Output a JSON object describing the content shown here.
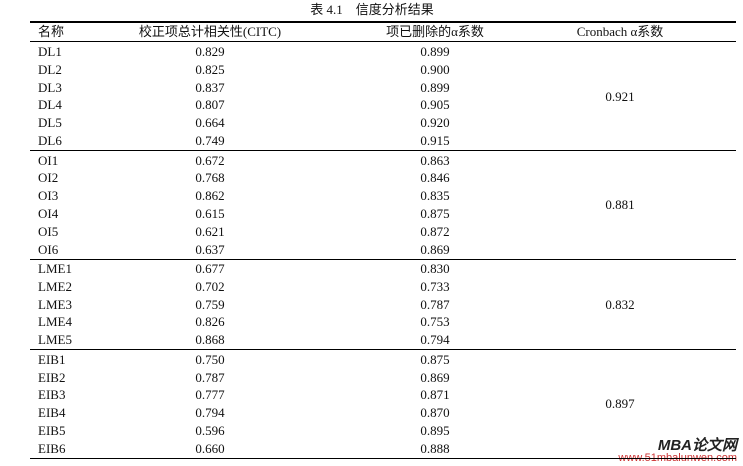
{
  "table": {
    "title": "表 4.1　信度分析结果",
    "headers": [
      "名称",
      "校正项总计相关性(CITC)",
      "项已删除的α系数",
      "Cronbach α系数"
    ],
    "groups": [
      {
        "rows": [
          [
            "DL1",
            "0.829",
            "0.899"
          ],
          [
            "DL2",
            "0.825",
            "0.900"
          ],
          [
            "DL3",
            "0.837",
            "0.899"
          ],
          [
            "DL4",
            "0.807",
            "0.905"
          ],
          [
            "DL5",
            "0.664",
            "0.920"
          ],
          [
            "DL6",
            "0.749",
            "0.915"
          ]
        ],
        "alpha": "0.921"
      },
      {
        "rows": [
          [
            "OI1",
            "0.672",
            "0.863"
          ],
          [
            "OI2",
            "0.768",
            "0.846"
          ],
          [
            "OI3",
            "0.862",
            "0.835"
          ],
          [
            "OI4",
            "0.615",
            "0.875"
          ],
          [
            "OI5",
            "0.621",
            "0.872"
          ],
          [
            "OI6",
            "0.637",
            "0.869"
          ]
        ],
        "alpha": "0.881"
      },
      {
        "rows": [
          [
            "LME1",
            "0.677",
            "0.830"
          ],
          [
            "LME2",
            "0.702",
            "0.733"
          ],
          [
            "LME3",
            "0.759",
            "0.787"
          ],
          [
            "LME4",
            "0.826",
            "0.753"
          ],
          [
            "LME5",
            "0.868",
            "0.794"
          ]
        ],
        "alpha": "0.832"
      },
      {
        "rows": [
          [
            "EIB1",
            "0.750",
            "0.875"
          ],
          [
            "EIB2",
            "0.787",
            "0.869"
          ],
          [
            "EIB3",
            "0.777",
            "0.871"
          ],
          [
            "EIB4",
            "0.794",
            "0.870"
          ],
          [
            "EIB5",
            "0.596",
            "0.895"
          ],
          [
            "EIB6",
            "0.660",
            "0.888"
          ]
        ],
        "alpha": "0.897"
      }
    ]
  },
  "watermark": {
    "brand": "MBA论文网",
    "url": "www.51mbalunwen.com"
  }
}
